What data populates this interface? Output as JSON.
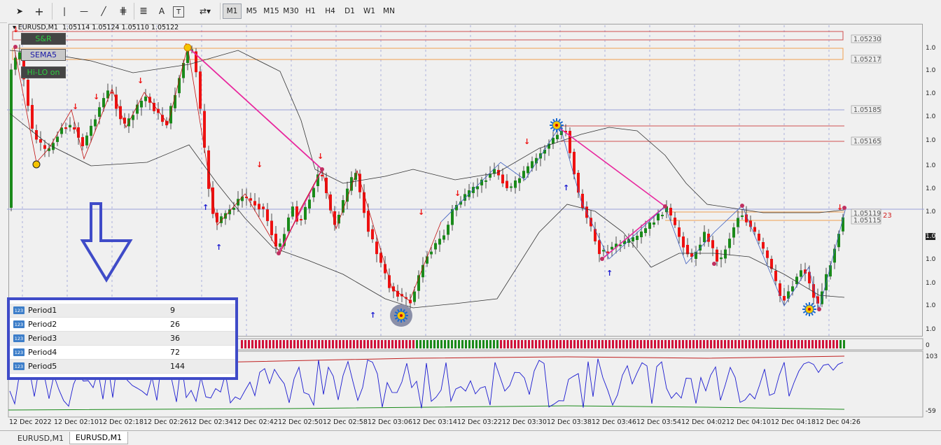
{
  "toolbar": {
    "tools": [
      {
        "name": "cursor-tool",
        "glyph": "➤"
      },
      {
        "name": "crosshair-tool",
        "glyph": "+"
      },
      {
        "name": "vertical-line-tool",
        "glyph": "|"
      },
      {
        "name": "horizontal-line-tool",
        "glyph": "—"
      },
      {
        "name": "trendline-tool",
        "glyph": "╱"
      },
      {
        "name": "channel-tool",
        "glyph": "⋕"
      },
      {
        "name": "fibonacci-tool",
        "glyph": "≣"
      },
      {
        "name": "text-tool",
        "glyph": "A"
      },
      {
        "name": "text-label-tool",
        "glyph": "T"
      },
      {
        "name": "arrows-tool",
        "glyph": "⇄▾"
      }
    ],
    "timeframes": [
      "M1",
      "M5",
      "M15",
      "M30",
      "H1",
      "H4",
      "D1",
      "W1",
      "MN"
    ],
    "active_timeframe": "M1"
  },
  "chart": {
    "symbol": "EURUSD,M1",
    "ohlc": "1.05114 1.05124 1.05110 1.05122",
    "indicator_buttons": [
      {
        "label": "S&R",
        "text_color": "#2ecc40",
        "bg": "#444444"
      },
      {
        "label": "SEMA5",
        "text_color": "#1a1aa8",
        "bg": "#c8c8c8"
      },
      {
        "label": "Hi-LO on",
        "text_color": "#2ecc40",
        "bg": "#444444"
      }
    ],
    "price_labels": [
      "1.05230",
      "1.05217",
      "1.05185",
      "1.05165",
      "1.05119",
      "1.05115"
    ],
    "spread_label": "23",
    "current_price_label": "1.0",
    "subwindow1_label": "0",
    "subwindow2_label": "103",
    "subwindow2_bottom_label": "-59"
  },
  "time_axis": [
    "12 Dec 2022",
    "12 Dec 02:10",
    "12 Dec 02:18",
    "12 Dec 02:26",
    "12 Dec 02:34",
    "12 Dec 02:42",
    "12 Dec 02:50",
    "12 Dec 02:58",
    "12 Dec 03:06",
    "12 Dec 03:14",
    "12 Dec 03:22",
    "12 Dec 03:30",
    "12 Dec 03:38",
    "12 Dec 03:46",
    "12 Dec 03:54",
    "12 Dec 04:02",
    "12 Dec 04:10",
    "12 Dec 04:18",
    "12 Dec 04:26"
  ],
  "properties": [
    {
      "name": "Period1",
      "value": "9"
    },
    {
      "name": "Period2",
      "value": "26"
    },
    {
      "name": "Period3",
      "value": "36"
    },
    {
      "name": "Period4",
      "value": "72"
    },
    {
      "name": "Period5",
      "value": "144"
    }
  ],
  "property_icon_text": "123",
  "tabs": [
    {
      "label": "EURUSD,M1",
      "active": false
    },
    {
      "label": "EURUSD,M1",
      "active": true
    }
  ],
  "colors": {
    "bull": "#1a8a1a",
    "bear": "#ee1111",
    "zigzag": "#e8289e",
    "bands": "#333333",
    "annotation": "#3f4bc8",
    "sr_red": "#d05050",
    "sr_orange": "#f0a050",
    "signal_blue": "#1a1ad0"
  }
}
